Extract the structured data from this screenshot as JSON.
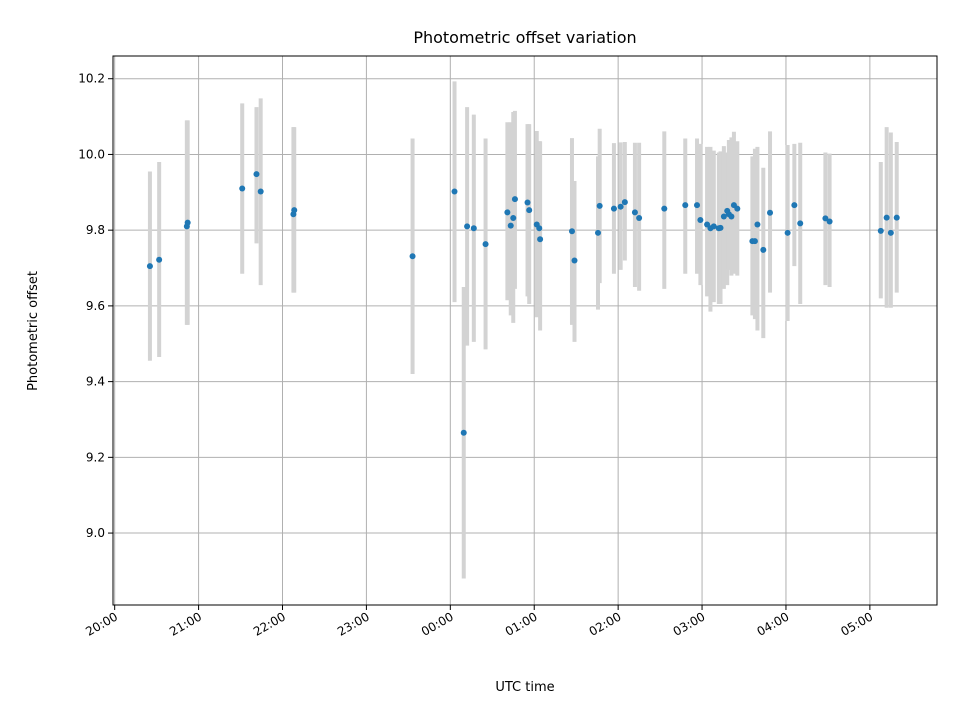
{
  "chart_data": {
    "type": "scatter",
    "title": "Photometric offset variation",
    "xlabel": "UTC time",
    "ylabel": "Photometric offset",
    "grid": true,
    "x_unit": "hours since 20:00 UTC",
    "xlim": [
      -0.02,
      9.8
    ],
    "ylim": [
      8.81,
      10.26
    ],
    "x_ticks": [
      0,
      1,
      2,
      3,
      4,
      5,
      6,
      7,
      8,
      9
    ],
    "x_tick_labels": [
      "20:00",
      "21:00",
      "22:00",
      "23:00",
      "00:00",
      "01:00",
      "02:00",
      "03:00",
      "04:00",
      "05:00"
    ],
    "y_ticks": [
      9.0,
      9.2,
      9.4,
      9.6,
      9.8,
      10.0,
      10.2
    ],
    "y_tick_labels": [
      "9.0",
      "9.2",
      "9.4",
      "9.6",
      "9.8",
      "10.0",
      "10.2"
    ],
    "series": [
      {
        "name": "offset",
        "x": [
          0.42,
          0.53,
          0.86,
          0.87,
          1.52,
          1.69,
          1.74,
          2.13,
          2.14,
          3.55,
          4.05,
          4.16,
          4.2,
          4.28,
          4.42,
          4.68,
          4.72,
          4.75,
          4.77,
          4.92,
          4.94,
          5.03,
          5.06,
          5.07,
          5.45,
          5.48,
          5.76,
          5.78,
          5.95,
          6.03,
          6.08,
          6.2,
          6.25,
          6.55,
          6.8,
          6.94,
          6.98,
          7.06,
          7.1,
          7.14,
          7.2,
          7.22,
          7.26,
          7.3,
          7.32,
          7.35,
          7.38,
          7.42,
          7.6,
          7.63,
          7.66,
          7.73,
          7.81,
          8.02,
          8.1,
          8.17,
          8.47,
          8.52,
          9.13,
          9.2,
          9.25,
          9.32
        ],
        "y": [
          9.705,
          9.722,
          9.81,
          9.82,
          9.91,
          9.948,
          9.902,
          9.842,
          9.853,
          9.731,
          9.902,
          9.265,
          9.81,
          9.805,
          9.763,
          9.847,
          9.812,
          9.832,
          9.882,
          9.873,
          9.853,
          9.815,
          9.805,
          9.776,
          9.797,
          9.72,
          9.793,
          9.864,
          9.857,
          9.862,
          9.874,
          9.847,
          9.832,
          9.857,
          9.866,
          9.866,
          9.827,
          9.815,
          9.805,
          9.81,
          9.805,
          9.806,
          9.836,
          9.851,
          9.842,
          9.836,
          9.866,
          9.857,
          9.771,
          9.771,
          9.815,
          9.748,
          9.846,
          9.793,
          9.866,
          9.818,
          9.831,
          9.823,
          9.798,
          9.833,
          9.793,
          9.833
        ],
        "y_lower": [
          9.455,
          9.465,
          9.55,
          9.55,
          9.685,
          9.765,
          9.655,
          9.635,
          9.635,
          9.42,
          9.61,
          8.88,
          9.495,
          9.505,
          9.485,
          9.615,
          9.575,
          9.555,
          9.645,
          9.625,
          9.605,
          9.57,
          9.575,
          9.535,
          9.55,
          9.505,
          9.59,
          9.66,
          9.685,
          9.695,
          9.72,
          9.65,
          9.64,
          9.645,
          9.685,
          9.685,
          9.655,
          9.625,
          9.585,
          9.61,
          9.605,
          9.605,
          9.645,
          9.655,
          9.695,
          9.68,
          9.685,
          9.68,
          9.575,
          9.565,
          9.535,
          9.515,
          9.635,
          9.56,
          9.705,
          9.605,
          9.655,
          9.65,
          9.62,
          9.595,
          9.595,
          9.635
        ],
        "y_upper": [
          9.955,
          9.98,
          10.09,
          10.09,
          10.135,
          10.125,
          10.148,
          10.072,
          10.072,
          10.042,
          10.193,
          9.65,
          10.125,
          10.105,
          10.042,
          10.085,
          10.085,
          10.112,
          10.115,
          10.08,
          10.08,
          10.062,
          10.035,
          10.035,
          10.043,
          9.93,
          9.995,
          10.068,
          10.03,
          10.032,
          10.033,
          10.031,
          10.031,
          10.061,
          10.042,
          10.042,
          10.028,
          10.02,
          10.02,
          10.01,
          10.005,
          10.008,
          10.022,
          10.005,
          10.038,
          10.045,
          10.06,
          10.035,
          9.995,
          10.015,
          10.02,
          9.965,
          10.061,
          10.025,
          10.028,
          10.031,
          10.005,
          10.002,
          9.98,
          10.072,
          10.058,
          10.033
        ]
      }
    ],
    "marker_color": "#1f77b4",
    "errorbar_color": "#d3d3d3"
  }
}
